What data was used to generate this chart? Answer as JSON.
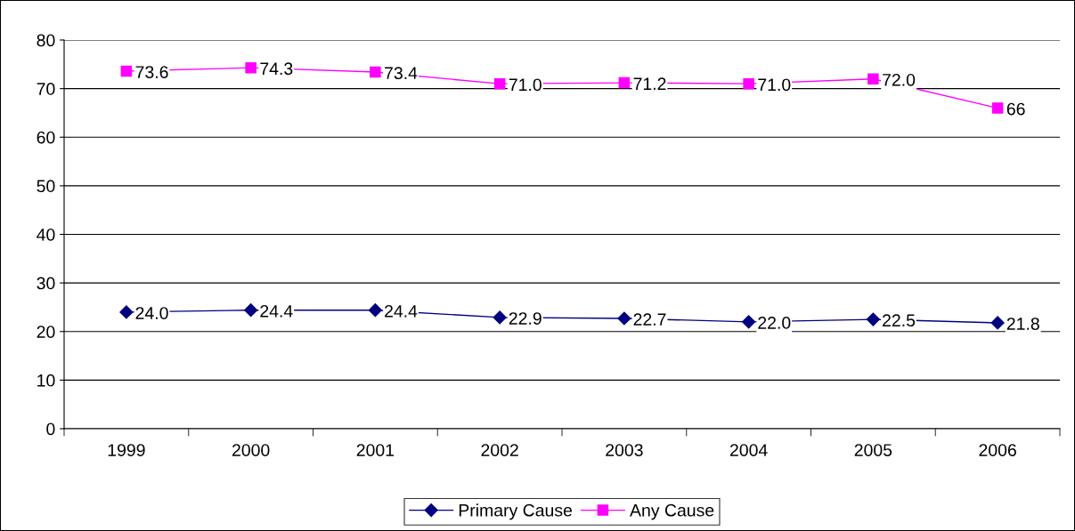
{
  "chart_data": {
    "type": "line",
    "categories": [
      "1999",
      "2000",
      "2001",
      "2002",
      "2003",
      "2004",
      "2005",
      "2006"
    ],
    "series": [
      {
        "name": "Primary Cause",
        "color": "#000080",
        "marker": "diamond",
        "values": [
          24.0,
          24.4,
          24.4,
          22.9,
          22.7,
          22.0,
          22.5,
          21.8
        ],
        "value_labels": [
          "24.0",
          "24.4",
          "24.4",
          "22.9",
          "22.7",
          "22.0",
          "22.5",
          "21.8"
        ]
      },
      {
        "name": "Any Cause",
        "color": "#ff00ff",
        "marker": "square",
        "values": [
          73.6,
          74.3,
          73.4,
          71.0,
          71.2,
          71.0,
          72.0,
          66
        ],
        "value_labels": [
          "73.6",
          "74.3",
          "73.4",
          "71.0",
          "71.2",
          "71.0",
          "72.0",
          "66"
        ]
      }
    ],
    "ylim": [
      0,
      80
    ],
    "yticks": [
      0,
      10,
      20,
      30,
      40,
      50,
      60,
      70,
      80
    ],
    "grid": "y",
    "legend": "bottom",
    "line_style": "solid"
  }
}
